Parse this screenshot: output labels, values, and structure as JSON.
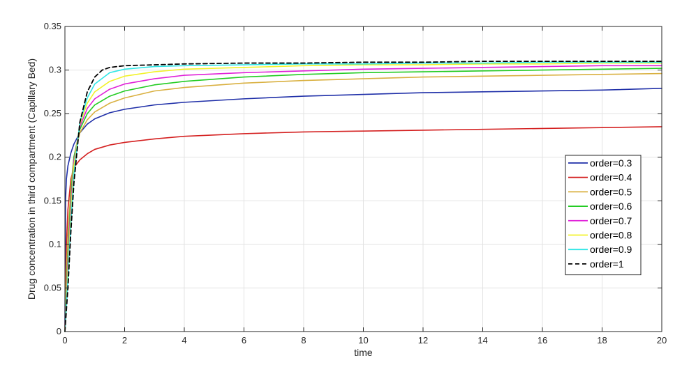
{
  "chart_data": {
    "type": "line",
    "xlabel": "time",
    "ylabel": "Drug concentration in third compartment (Capillary Bed)",
    "xlim": [
      0,
      20
    ],
    "ylim": [
      0,
      0.35
    ],
    "xticks": [
      "0",
      "2",
      "4",
      "6",
      "8",
      "10",
      "12",
      "14",
      "16",
      "18",
      "20"
    ],
    "yticks": [
      "0",
      "0.05",
      "0.1",
      "0.15",
      "0.2",
      "0.25",
      "0.3",
      "0.35"
    ],
    "grid": true,
    "legend_position": "right",
    "series": [
      {
        "name": "order=0.3",
        "color": "#1f2fa8",
        "dash": "solid",
        "x": [
          0,
          0.02,
          0.05,
          0.1,
          0.2,
          0.3,
          0.5,
          0.75,
          1,
          1.5,
          2,
          3,
          4,
          6,
          8,
          10,
          12,
          14,
          16,
          18,
          20
        ],
        "y": [
          0,
          0.15,
          0.175,
          0.19,
          0.205,
          0.215,
          0.228,
          0.238,
          0.244,
          0.251,
          0.255,
          0.26,
          0.263,
          0.267,
          0.27,
          0.272,
          0.274,
          0.275,
          0.276,
          0.277,
          0.279
        ]
      },
      {
        "name": "order=0.4",
        "color": "#d42020",
        "dash": "solid",
        "x": [
          0,
          0.05,
          0.1,
          0.2,
          0.3,
          0.5,
          0.75,
          1,
          1.5,
          2,
          3,
          4,
          6,
          8,
          10,
          12,
          14,
          16,
          18,
          20
        ],
        "y": [
          0,
          0.1,
          0.14,
          0.175,
          0.188,
          0.197,
          0.204,
          0.209,
          0.214,
          0.217,
          0.221,
          0.224,
          0.227,
          0.229,
          0.23,
          0.231,
          0.232,
          0.233,
          0.234,
          0.235
        ]
      },
      {
        "name": "order=0.5",
        "color": "#d9b040",
        "dash": "solid",
        "x": [
          0,
          0.05,
          0.1,
          0.2,
          0.3,
          0.5,
          0.75,
          1,
          1.5,
          2,
          3,
          4,
          6,
          8,
          10,
          12,
          14,
          16,
          18,
          20
        ],
        "y": [
          0,
          0.07,
          0.11,
          0.165,
          0.2,
          0.228,
          0.243,
          0.252,
          0.262,
          0.268,
          0.276,
          0.28,
          0.285,
          0.288,
          0.29,
          0.292,
          0.293,
          0.294,
          0.295,
          0.296
        ]
      },
      {
        "name": "order=0.6",
        "color": "#22cc22",
        "dash": "solid",
        "x": [
          0,
          0.05,
          0.1,
          0.2,
          0.3,
          0.5,
          0.75,
          1,
          1.5,
          2,
          3,
          4,
          6,
          8,
          10,
          12,
          14,
          16,
          18,
          20
        ],
        "y": [
          0,
          0.05,
          0.09,
          0.155,
          0.2,
          0.232,
          0.25,
          0.26,
          0.27,
          0.276,
          0.283,
          0.287,
          0.292,
          0.295,
          0.297,
          0.298,
          0.299,
          0.3,
          0.301,
          0.302
        ]
      },
      {
        "name": "order=0.7",
        "color": "#e020d8",
        "dash": "solid",
        "x": [
          0,
          0.05,
          0.1,
          0.2,
          0.3,
          0.5,
          0.75,
          1,
          1.5,
          2,
          3,
          4,
          6,
          8,
          10,
          12,
          14,
          16,
          18,
          20
        ],
        "y": [
          0,
          0.04,
          0.08,
          0.145,
          0.195,
          0.235,
          0.256,
          0.267,
          0.278,
          0.284,
          0.29,
          0.294,
          0.297,
          0.299,
          0.301,
          0.302,
          0.303,
          0.304,
          0.305,
          0.305
        ]
      },
      {
        "name": "order=0.8",
        "color": "#f2f22a",
        "dash": "solid",
        "x": [
          0,
          0.05,
          0.1,
          0.2,
          0.3,
          0.5,
          0.75,
          1,
          1.5,
          2,
          3,
          4,
          6,
          8,
          10,
          12,
          14,
          16,
          18,
          20
        ],
        "y": [
          0,
          0.035,
          0.07,
          0.135,
          0.19,
          0.238,
          0.262,
          0.275,
          0.287,
          0.293,
          0.298,
          0.301,
          0.303,
          0.305,
          0.306,
          0.306,
          0.307,
          0.307,
          0.308,
          0.308
        ]
      },
      {
        "name": "order=0.9",
        "color": "#30e6e6",
        "dash": "solid",
        "x": [
          0,
          0.05,
          0.1,
          0.2,
          0.3,
          0.5,
          0.75,
          1,
          1.5,
          2,
          3,
          4,
          6,
          8,
          10,
          12,
          14,
          16,
          18,
          20
        ],
        "y": [
          0,
          0.03,
          0.06,
          0.125,
          0.18,
          0.24,
          0.268,
          0.284,
          0.297,
          0.301,
          0.304,
          0.305,
          0.306,
          0.307,
          0.307,
          0.308,
          0.308,
          0.309,
          0.309,
          0.309
        ]
      },
      {
        "name": "order=1",
        "color": "#000000",
        "dash": "dashed",
        "x": [
          0,
          0.05,
          0.1,
          0.2,
          0.3,
          0.5,
          0.75,
          1,
          1.25,
          1.5,
          2,
          3,
          4,
          6,
          8,
          10,
          12,
          14,
          16,
          18,
          20
        ],
        "y": [
          0,
          0.025,
          0.05,
          0.115,
          0.17,
          0.24,
          0.275,
          0.292,
          0.3,
          0.303,
          0.305,
          0.306,
          0.307,
          0.308,
          0.308,
          0.309,
          0.309,
          0.31,
          0.31,
          0.31,
          0.31
        ]
      }
    ]
  }
}
